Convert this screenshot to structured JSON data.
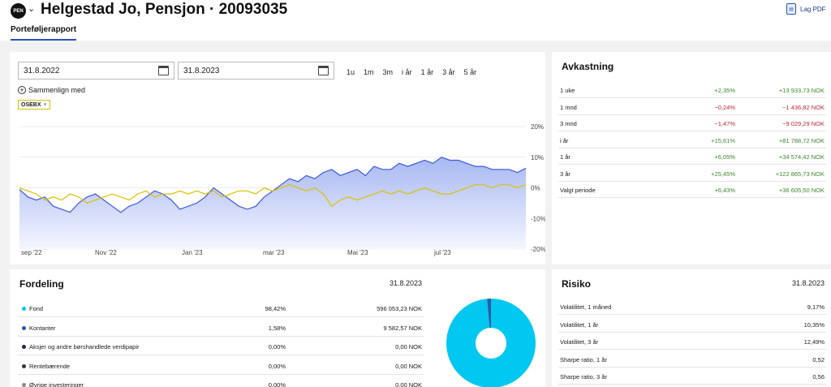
{
  "header": {
    "logo_text": "PEN",
    "title": "Helgestad Jo, Pensjon · 20093035",
    "pdf_button": "Lag PDF",
    "tab": "Porteføljerapport"
  },
  "controls": {
    "from_date": "31.8.2022",
    "to_date": "31.8.2023",
    "periods": [
      "1u",
      "1m",
      "3m",
      "i år",
      "1 år",
      "3 år",
      "5 år"
    ],
    "compare_label": "Sammenlign med",
    "compare_chip": "OSEBX",
    "chip_close": "×"
  },
  "chart_data": {
    "type": "area",
    "x_ticks": [
      "sep '22",
      "Nov '22",
      "Jan '23",
      "mar '23",
      "Mai '23",
      "jul '23"
    ],
    "y_ticks": [
      "20%",
      "10%",
      "0%",
      "-10%",
      "-20%"
    ],
    "ylim": [
      -20,
      20
    ],
    "x_count": 61,
    "grid": true,
    "series": [
      {
        "color": "#3b5bd6",
        "fill": "#c9d4f8",
        "values": [
          -0.5,
          -3,
          -4,
          -3,
          -6,
          -7,
          -8,
          -5,
          -3,
          -2,
          -4,
          -6,
          -8,
          -6,
          -5,
          -3,
          -1,
          -2,
          -4,
          -7,
          -6,
          -5,
          -3,
          0,
          -2,
          -4,
          -6,
          -7,
          -6,
          -3,
          -1,
          1,
          3,
          2,
          4,
          3,
          5,
          6,
          4,
          5,
          6,
          4,
          7,
          6,
          6,
          8,
          7,
          8,
          9,
          8,
          10,
          9,
          9,
          8,
          7,
          7,
          6,
          6,
          6,
          5,
          6.4
        ]
      },
      {
        "color": "#d9c200",
        "values": [
          0,
          -1,
          -2,
          -4,
          -3,
          -4,
          -2,
          -3,
          -5,
          -4,
          -3,
          -2,
          -3,
          -4,
          -2,
          -1,
          -3,
          -2,
          -2,
          -1,
          -2,
          -1,
          -2,
          -1,
          -3,
          -2,
          -1,
          -1,
          -2,
          0,
          -1,
          0,
          1,
          0,
          -1,
          0,
          -2,
          -6,
          -4,
          -3,
          -4,
          -3,
          -2,
          -1,
          -2,
          -1,
          -2,
          -1,
          0,
          -1,
          -2,
          -2,
          -1,
          0,
          1,
          1,
          0,
          1,
          1,
          0,
          1
        ]
      }
    ]
  },
  "avkastning": {
    "title": "Avkastning",
    "rows": [
      {
        "label": "1 uke",
        "pct": "+2,35%",
        "nok": "+13 933,73 NOK",
        "sign": "pos"
      },
      {
        "label": "1 mnd",
        "pct": "−0,24%",
        "nok": "−1 436,82 NOK",
        "sign": "neg"
      },
      {
        "label": "3 mnd",
        "pct": "−1,47%",
        "nok": "−9 029,29 NOK",
        "sign": "neg"
      },
      {
        "label": "i år",
        "pct": "+15,61%",
        "nok": "+81 788,72 NOK",
        "sign": "pos"
      },
      {
        "label": "1 år",
        "pct": "+6,05%",
        "nok": "+34 574,42 NOK",
        "sign": "pos"
      },
      {
        "label": "3 år",
        "pct": "+25,45%",
        "nok": "+122 865,73 NOK",
        "sign": "pos"
      },
      {
        "label": "Valgt periode",
        "pct": "+6,43%",
        "nok": "+36 605,50 NOK",
        "sign": "pos"
      }
    ]
  },
  "fordeling": {
    "title": "Fordeling",
    "date": "31.8.2023",
    "rows": [
      {
        "label": "Fond",
        "pct": "98,42%",
        "nok": "596 053,23 NOK",
        "color": "#00c8f0",
        "share": 0.9842
      },
      {
        "label": "Kontanter",
        "pct": "1,58%",
        "nok": "9 582,57 NOK",
        "color": "#2a5aa8",
        "share": 0.0158
      },
      {
        "label": "Aksjer og andre børshandlede verdipapir",
        "pct": "0,00%",
        "nok": "0,00 NOK",
        "color": "#1a2a4a",
        "share": 0
      },
      {
        "label": "Rentebærende",
        "pct": "0,00%",
        "nok": "0,00 NOK",
        "color": "#333",
        "share": 0
      },
      {
        "label": "Øvrige investeringer",
        "pct": "0,00%",
        "nok": "0,00 NOK",
        "color": "#888",
        "share": 0
      }
    ]
  },
  "risiko": {
    "title": "Risiko",
    "date": "31.8.2023",
    "rows": [
      {
        "label": "Volatilitet, 1 måned",
        "value": "9,17%"
      },
      {
        "label": "Volatilitet, 1 år",
        "value": "10,35%"
      },
      {
        "label": "Volatilitet, 3 år",
        "value": "12,49%"
      },
      {
        "label": "Sharpe ratio, 1 år",
        "value": "0,52"
      },
      {
        "label": "Sharpe ratio, 3 år",
        "value": "0,56"
      }
    ]
  }
}
